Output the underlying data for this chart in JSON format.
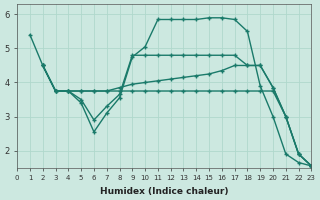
{
  "xlabel": "Humidex (Indice chaleur)",
  "bg_color": "#cce8e0",
  "grid_color": "#b0d8cc",
  "line_color": "#1a7a6a",
  "xlim": [
    0,
    23
  ],
  "ylim": [
    1.5,
    6.3
  ],
  "yticks": [
    2,
    3,
    4,
    5,
    6
  ],
  "xticks": [
    0,
    1,
    2,
    3,
    4,
    5,
    6,
    7,
    8,
    9,
    10,
    11,
    12,
    13,
    14,
    15,
    16,
    17,
    18,
    19,
    20,
    21,
    22,
    23
  ],
  "lines": [
    {
      "x": [
        1,
        2,
        3,
        4,
        5,
        6,
        7,
        8,
        9,
        10,
        11,
        12,
        13,
        14,
        15,
        16,
        17,
        18,
        19,
        20,
        21,
        22,
        23
      ],
      "y": [
        5.4,
        4.5,
        3.75,
        3.75,
        3.4,
        2.55,
        3.1,
        3.55,
        4.75,
        5.05,
        5.85,
        5.85,
        5.85,
        5.85,
        5.9,
        5.9,
        5.85,
        5.5,
        3.9,
        3.0,
        1.9,
        1.65,
        1.55
      ]
    },
    {
      "x": [
        2,
        3,
        4,
        5,
        6,
        7,
        8,
        9,
        10,
        11,
        12,
        13,
        14,
        15,
        16,
        17,
        18,
        19,
        20,
        21,
        22,
        23
      ],
      "y": [
        4.5,
        3.75,
        3.75,
        3.75,
        3.75,
        3.75,
        3.85,
        3.95,
        4.0,
        4.05,
        4.1,
        4.15,
        4.2,
        4.25,
        4.35,
        4.5,
        4.5,
        4.5,
        3.85,
        3.0,
        1.9,
        1.55
      ]
    },
    {
      "x": [
        2,
        3,
        4,
        5,
        6,
        7,
        8,
        9,
        10,
        11,
        12,
        13,
        14,
        15,
        16,
        17,
        18,
        19,
        20,
        21,
        22,
        23
      ],
      "y": [
        4.5,
        3.75,
        3.75,
        3.75,
        3.75,
        3.75,
        3.75,
        3.75,
        3.75,
        3.75,
        3.75,
        3.75,
        3.75,
        3.75,
        3.75,
        3.75,
        3.75,
        3.75,
        3.75,
        3.0,
        1.9,
        1.55
      ]
    },
    {
      "x": [
        2,
        3,
        4,
        5,
        6,
        7,
        8,
        9,
        10,
        11,
        12,
        13,
        14,
        15,
        16,
        17,
        18,
        19,
        20,
        21,
        22,
        23
      ],
      "y": [
        4.5,
        3.75,
        3.75,
        3.5,
        2.9,
        3.3,
        3.65,
        4.8,
        4.8,
        4.8,
        4.8,
        4.8,
        4.8,
        4.8,
        4.8,
        4.8,
        4.5,
        4.5,
        3.85,
        3.0,
        1.9,
        1.55
      ]
    }
  ]
}
